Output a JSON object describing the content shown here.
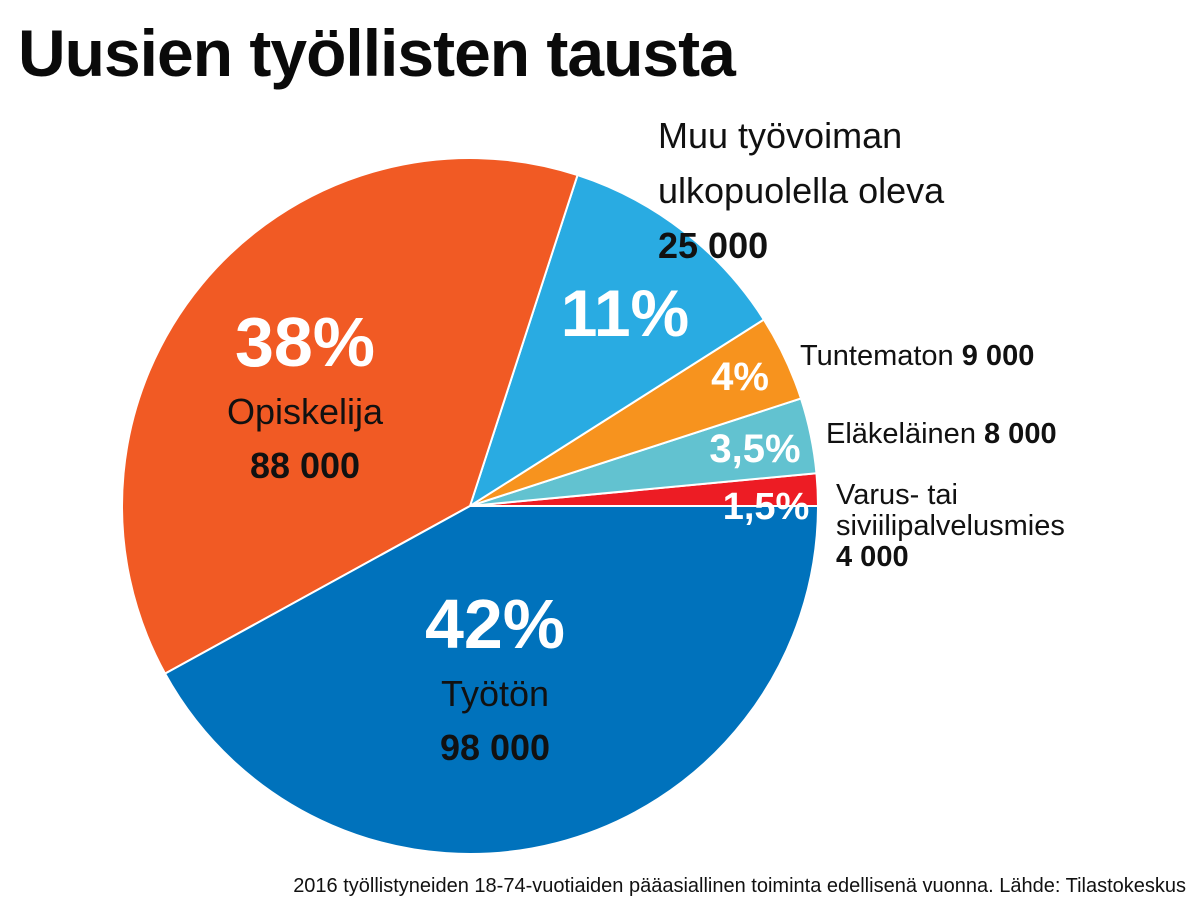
{
  "chart_data": {
    "type": "pie",
    "title": "Uusien työllisten tausta",
    "source_note": "2016 työllistyneiden 18-74-vuotiaiden pääasiallinen toiminta edellisenä vuonna. Lähde: Tilastokeskus",
    "slices": [
      {
        "label": "Työtön",
        "label_lines": [
          "Työtön"
        ],
        "percent": 42,
        "percent_label": "42%",
        "value": 98000,
        "value_label": "98 000",
        "color": "#0072bc"
      },
      {
        "label": "Opiskelija",
        "label_lines": [
          "Opiskelija"
        ],
        "percent": 38,
        "percent_label": "38%",
        "value": 88000,
        "value_label": "88 000",
        "color": "#f15a24"
      },
      {
        "label": "Muu työvoiman ulkopuolella oleva",
        "label_lines": [
          "Muu työvoiman",
          "ulkopuolella oleva"
        ],
        "percent": 11,
        "percent_label": "11%",
        "value": 25000,
        "value_label": "25 000",
        "color": "#29abe2"
      },
      {
        "label": "Tuntematon",
        "label_lines": [
          "Tuntematon"
        ],
        "percent": 4,
        "percent_label": "4%",
        "value": 9000,
        "value_label": "9 000",
        "color": "#f7931e"
      },
      {
        "label": "Eläkeläinen",
        "label_lines": [
          "Eläkeläinen"
        ],
        "percent": 3.5,
        "percent_label": "3,5%",
        "value": 8000,
        "value_label": "8 000",
        "color": "#62c2d0"
      },
      {
        "label": "Varus- tai siviilipalvelusmies",
        "label_lines": [
          "Varus- tai",
          "siviilipalvelusmies"
        ],
        "percent": 1.5,
        "percent_label": "1,5%",
        "value": 4000,
        "value_label": "4 000",
        "color": "#ed1c24"
      }
    ]
  }
}
